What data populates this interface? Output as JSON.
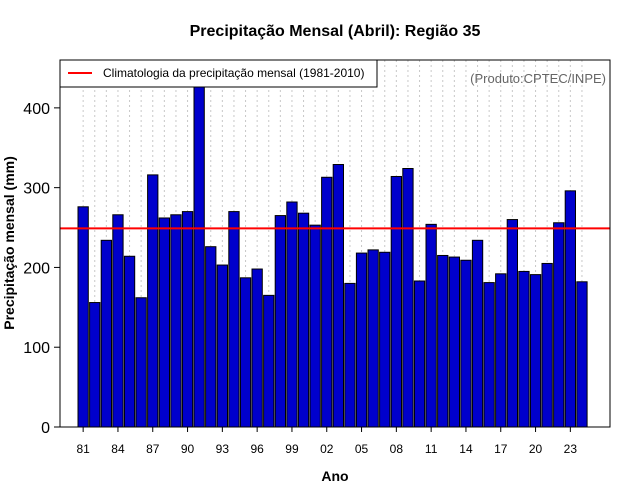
{
  "chart_data": {
    "type": "bar",
    "title": "Precipitação Mensal (Abril): Região 35",
    "xlabel": "Ano",
    "ylabel": "Precipitação mensal (mm)",
    "source_note": "(Produto:CPTEC/INPE)",
    "ylim": [
      0,
      460
    ],
    "yticks": [
      0,
      100,
      200,
      300,
      400
    ],
    "grid": true,
    "legend": {
      "position": "top-left",
      "entries": [
        {
          "label": "Climatologia da precipitação mensal (1981-2010)",
          "color": "#ff0000"
        }
      ]
    },
    "climatology": 249,
    "bar_color": "#0000cc",
    "categories": [
      "81",
      "82",
      "83",
      "84",
      "85",
      "86",
      "87",
      "88",
      "89",
      "90",
      "91",
      "92",
      "93",
      "94",
      "95",
      "96",
      "97",
      "98",
      "99",
      "00",
      "01",
      "02",
      "03",
      "04",
      "05",
      "06",
      "07",
      "08",
      "09",
      "10",
      "11",
      "12",
      "13",
      "14",
      "15",
      "16",
      "17",
      "18",
      "19",
      "20",
      "21",
      "22",
      "23",
      "24"
    ],
    "xtick_labels": [
      "81",
      "84",
      "87",
      "90",
      "93",
      "96",
      "99",
      "02",
      "05",
      "08",
      "11",
      "14",
      "17",
      "20",
      "23"
    ],
    "values": [
      276,
      156,
      234,
      266,
      214,
      162,
      316,
      262,
      266,
      270,
      438,
      226,
      203,
      270,
      187,
      198,
      165,
      265,
      282,
      268,
      253,
      313,
      329,
      180,
      218,
      222,
      219,
      314,
      324,
      183,
      254,
      215,
      213,
      209,
      234,
      181,
      192,
      260,
      195,
      191,
      205,
      256,
      296,
      182
    ]
  }
}
